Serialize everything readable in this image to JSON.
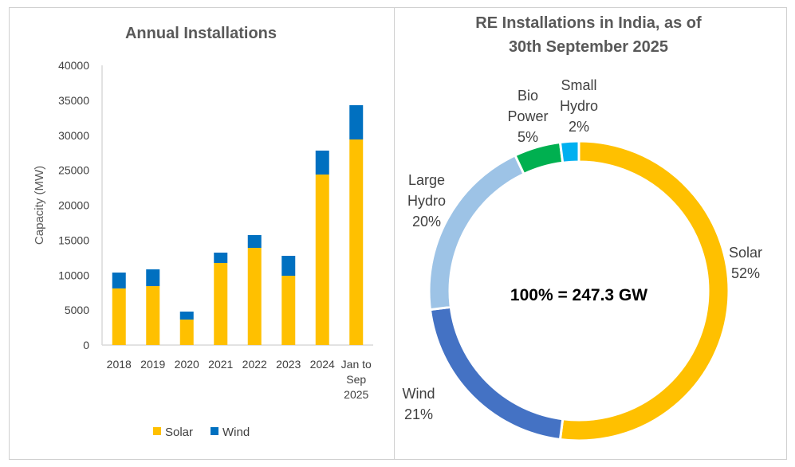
{
  "chart_data": [
    {
      "type": "bar",
      "stacked": true,
      "title": "Annual Installations",
      "xlabel": "",
      "ylabel": "Capacity (MW)",
      "ylim": [
        0,
        40000
      ],
      "yticks": [
        "0",
        "5000",
        "10000",
        "15000",
        "20000",
        "25000",
        "30000",
        "35000",
        "40000"
      ],
      "categories": [
        [
          "2018"
        ],
        [
          "2019"
        ],
        [
          "2020"
        ],
        [
          "2021"
        ],
        [
          "2022"
        ],
        [
          "2023"
        ],
        [
          "2024"
        ],
        [
          "Jan to",
          "Sep",
          "2025"
        ]
      ],
      "series": [
        {
          "name": "Solar",
          "color": "#FFC000",
          "values": [
            8100,
            8430,
            3650,
            11740,
            13900,
            9910,
            24390,
            29400
          ]
        },
        {
          "name": "Wind",
          "color": "#0070C0",
          "values": [
            2270,
            2400,
            1140,
            1480,
            1830,
            2850,
            3420,
            4900
          ]
        }
      ],
      "legend": "bottom"
    },
    {
      "type": "pie",
      "donut": true,
      "title": [
        "RE Installations in India, as of",
        "30th September 2025"
      ],
      "center_label": "100% = 247.3 GW",
      "slices": [
        {
          "label": [
            "Solar"
          ],
          "pct": "52%",
          "value": 52,
          "color": "#FFC000"
        },
        {
          "label": [
            "Wind"
          ],
          "pct": "21%",
          "value": 21,
          "color": "#4472C4"
        },
        {
          "label": [
            "Large",
            "Hydro"
          ],
          "pct": "20%",
          "value": 20,
          "color": "#9DC3E6"
        },
        {
          "label": [
            "Bio",
            "Power"
          ],
          "pct": "5%",
          "value": 5,
          "color": "#00B050"
        },
        {
          "label": [
            "Small",
            "Hydro"
          ],
          "pct": "2%",
          "value": 2,
          "color": "#00B0F0"
        }
      ]
    }
  ]
}
